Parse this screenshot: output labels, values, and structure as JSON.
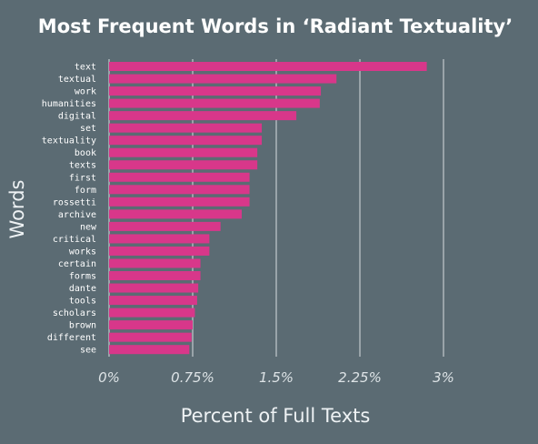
{
  "chart_data": {
    "type": "bar",
    "orientation": "horizontal",
    "title": "Most Frequent Words in ‘Radiant Textuality’",
    "xlabel": "Percent of Full Texts",
    "ylabel": "Words",
    "xlim": [
      0,
      3.4
    ],
    "xticks": [
      0,
      0.75,
      1.5,
      2.25,
      3
    ],
    "xtick_labels": [
      "0%",
      "0.75%",
      "1.5%",
      "2.25%",
      "3%"
    ],
    "grid": true,
    "bar_color": "#d8378a",
    "background_color": "#5b6b73",
    "categories": [
      "text",
      "textual",
      "work",
      "humanities",
      "digital",
      "set",
      "textuality",
      "book",
      "texts",
      "first",
      "form",
      "rossetti",
      "archive",
      "new",
      "critical",
      "works",
      "certain",
      "forms",
      "dante",
      "tools",
      "scholars",
      "brown",
      "different",
      "see"
    ],
    "values": [
      2.85,
      2.04,
      1.9,
      1.89,
      1.68,
      1.37,
      1.37,
      1.33,
      1.33,
      1.26,
      1.26,
      1.26,
      1.19,
      1.0,
      0.9,
      0.9,
      0.82,
      0.82,
      0.8,
      0.79,
      0.77,
      0.75,
      0.74,
      0.72
    ]
  }
}
